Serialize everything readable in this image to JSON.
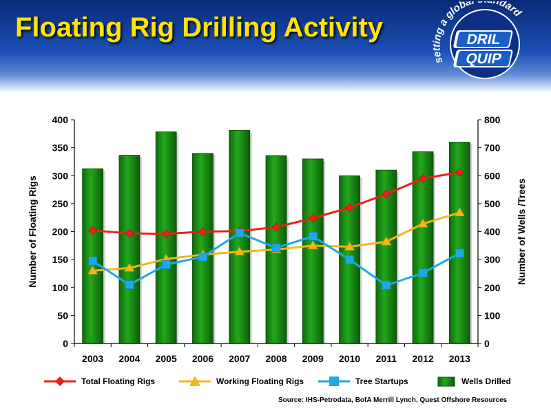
{
  "header": {
    "title": "Floating Rig Drilling Activity",
    "logo": {
      "tagline": "setting a global standard",
      "brand_line1": "DRIL",
      "brand_line2": "QUIP",
      "icon": "dril-quip-logo-icon"
    }
  },
  "colors": {
    "total": "#e8211b",
    "working": "#f2b818",
    "tree": "#1ea9e6",
    "wells": "#1b8f14",
    "title": "#ffe400"
  },
  "chart_data": {
    "type": "bar",
    "title": "",
    "categories": [
      "2003",
      "2004",
      "2005",
      "2006",
      "2007",
      "2008",
      "2009",
      "2010",
      "2011",
      "2012",
      "2013"
    ],
    "ylabel_left": "Number of Floating Rigs",
    "ylabel_right": "Number of Wells /Trees",
    "ylim_left": [
      0,
      400
    ],
    "ylim_right": [
      0,
      800
    ],
    "yticks_left": [
      "0",
      "50",
      "100",
      "150",
      "200",
      "250",
      "300",
      "350",
      "400"
    ],
    "yticks_right": [
      "0",
      "100",
      "200",
      "300",
      "400",
      "500",
      "600",
      "700",
      "800"
    ],
    "grid": false,
    "legend_placement": "bottom",
    "series": [
      {
        "name": "Total Floating Rigs",
        "type": "line",
        "axis": "left",
        "marker": "diamond",
        "values": [
          202,
          197,
          196,
          200,
          201,
          208,
          224,
          243,
          267,
          295,
          306
        ]
      },
      {
        "name": "Working Floating Rigs",
        "type": "line",
        "axis": "left",
        "marker": "triangle",
        "values": [
          130,
          135,
          151,
          159,
          164,
          168,
          175,
          173,
          182,
          214,
          234
        ]
      },
      {
        "name": "Tree Startups",
        "type": "line",
        "axis": "right",
        "marker": "square",
        "values": [
          295,
          210,
          282,
          310,
          395,
          342,
          383,
          300,
          208,
          252,
          323
        ]
      },
      {
        "name": "Wells Drilled",
        "type": "bar",
        "axis": "right",
        "values": [
          625,
          673,
          757,
          680,
          762,
          672,
          660,
          600,
          620,
          686,
          720
        ]
      }
    ]
  },
  "source": "Source:  IHS-Petrodata, BofA Merrill Lynch, Quest Offshore Resources"
}
